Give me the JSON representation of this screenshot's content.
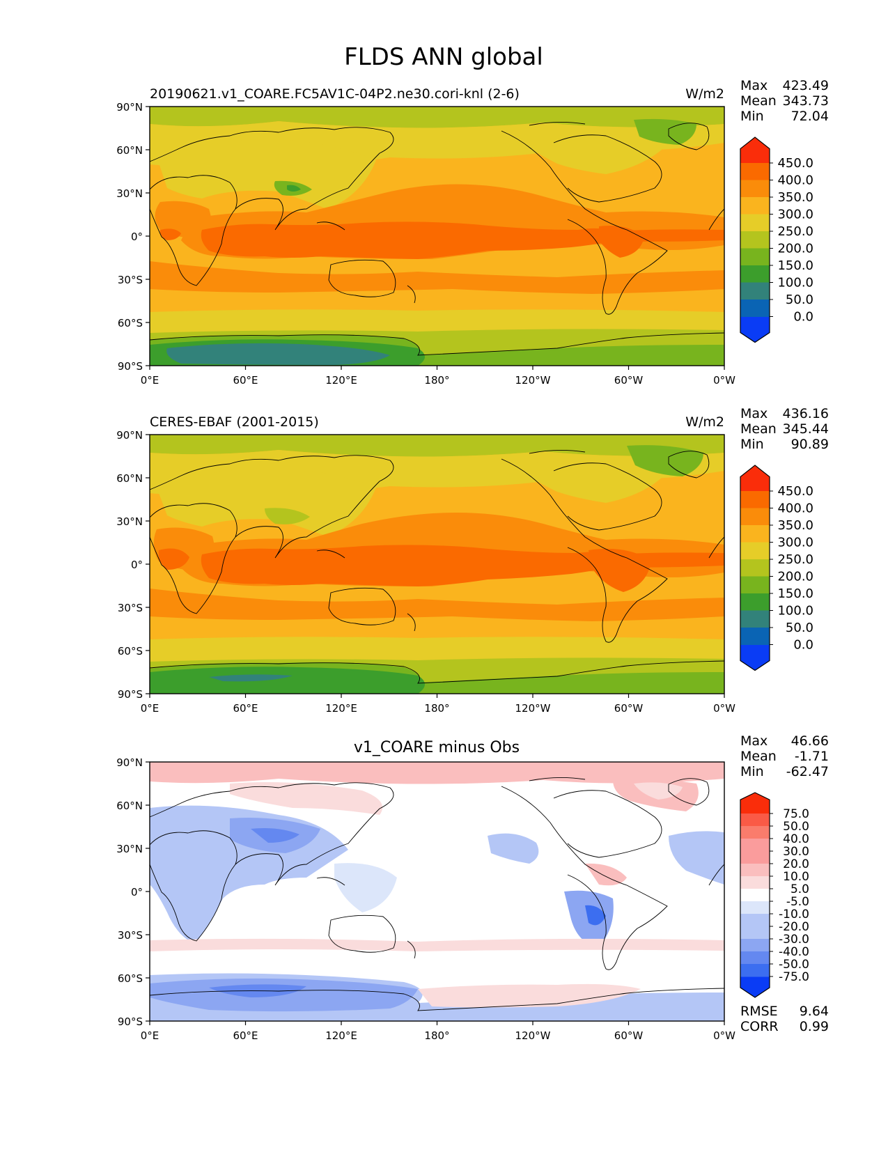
{
  "page_title": "FLDS ANN global",
  "colors": {
    "abs_levels": [
      "#0a3cf5",
      "#0a64b4",
      "#32827a",
      "#3c9e2c",
      "#78b41e",
      "#b4c41e",
      "#e6cd28",
      "#fab41e",
      "#fa8c0a",
      "#fa6a00",
      "#fa2d0a"
    ],
    "diff_levels": [
      "#0a3cf5",
      "#3c6ef0",
      "#6488f0",
      "#8ca6f2",
      "#b4c6f6",
      "#dce6fa",
      "#ffffff",
      "#fadcdc",
      "#fabebe",
      "#fa9c9c",
      "#fa7c6c",
      "#fa5a46",
      "#fa2d0a"
    ],
    "land_outline": "#000000"
  },
  "maps": [
    {
      "type": "contour-map",
      "left_title": "20190621.v1_COARE.FC5AV1C-04P2.ne30.cori-knl (2-6)",
      "center_title": "",
      "units": "W/m2",
      "stats": [
        {
          "label": "Max",
          "value": "423.49"
        },
        {
          "label": "Mean",
          "value": "343.73"
        },
        {
          "label": "Min",
          "value": "72.04"
        }
      ],
      "colorbar_ticks": [
        "450.0",
        "400.0",
        "350.0",
        "300.0",
        "250.0",
        "200.0",
        "150.0",
        "100.0",
        "50.0",
        "0.0"
      ],
      "lat_ticks": [
        "90°N",
        "60°N",
        "30°N",
        "0°",
        "30°S",
        "60°S",
        "90°S"
      ],
      "lon_ticks": [
        "0°E",
        "60°E",
        "120°E",
        "180°",
        "120°W",
        "60°W",
        "0°W"
      ],
      "lat_range": [
        -90,
        90
      ],
      "lon_range": [
        0,
        360
      ]
    },
    {
      "type": "contour-map",
      "left_title": "CERES-EBAF (2001-2015)",
      "center_title": "",
      "units": "W/m2",
      "stats": [
        {
          "label": "Max",
          "value": "436.16"
        },
        {
          "label": "Mean",
          "value": "345.44"
        },
        {
          "label": "Min",
          "value": "90.89"
        }
      ],
      "colorbar_ticks": [
        "450.0",
        "400.0",
        "350.0",
        "300.0",
        "250.0",
        "200.0",
        "150.0",
        "100.0",
        "50.0",
        "0.0"
      ],
      "lat_ticks": [
        "90°N",
        "60°N",
        "30°N",
        "0°",
        "30°S",
        "60°S",
        "90°S"
      ],
      "lon_ticks": [
        "0°E",
        "60°E",
        "120°E",
        "180°",
        "120°W",
        "60°W",
        "0°W"
      ],
      "lat_range": [
        -90,
        90
      ],
      "lon_range": [
        0,
        360
      ]
    },
    {
      "type": "contour-map",
      "left_title": "",
      "center_title": "v1_COARE minus Obs",
      "units": "",
      "stats": [
        {
          "label": "Max",
          "value": "46.66"
        },
        {
          "label": "Mean",
          "value": "-1.71"
        },
        {
          "label": "Min",
          "value": "-62.47"
        }
      ],
      "colorbar_ticks": [
        "75.0",
        "50.0",
        "40.0",
        "30.0",
        "20.0",
        "10.0",
        "5.0",
        "-5.0",
        "-10.0",
        "-20.0",
        "-30.0",
        "-40.0",
        "-50.0",
        "-75.0"
      ],
      "lat_ticks": [
        "90°N",
        "60°N",
        "30°N",
        "0°",
        "30°S",
        "60°S",
        "90°S"
      ],
      "lon_ticks": [
        "0°E",
        "60°E",
        "120°E",
        "180°",
        "120°W",
        "60°W",
        "0°W"
      ],
      "lat_range": [
        -90,
        90
      ],
      "lon_range": [
        0,
        360
      ],
      "metrics": [
        {
          "label": "RMSE",
          "value": "9.64"
        },
        {
          "label": "CORR",
          "value": "0.99"
        }
      ]
    }
  ]
}
